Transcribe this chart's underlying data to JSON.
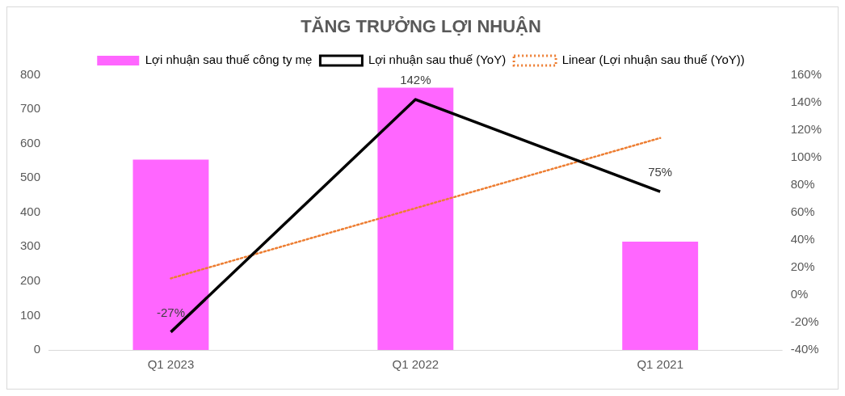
{
  "chart_data": {
    "type": "bar",
    "title": "TĂNG TRƯỞNG LỢI NHUẬN",
    "categories": [
      "Q1 2023",
      "Q1 2022",
      "Q1 2021"
    ],
    "series": [
      {
        "name": "Lợi nhuận sau thuế công ty mẹ",
        "color": "#ff66ff",
        "values": [
          553,
          762,
          315
        ]
      },
      {
        "name": "Lợi nhuận sau thuế (YoY)",
        "type": "line",
        "axis": "y2",
        "color": "#000000",
        "line_style": "solid",
        "values": [
          -27,
          142,
          75
        ],
        "value_labels": [
          "-27%",
          "142%",
          "75%"
        ]
      },
      {
        "name": "Linear (Lợi nhuận sau thuế (YoY))",
        "type": "line",
        "axis": "y2",
        "color": "#ed7d31",
        "line_style": "dotted",
        "values": [
          12,
          63,
          114
        ]
      }
    ],
    "ylim": [
      0,
      800
    ],
    "yticks": [
      0,
      100,
      200,
      300,
      400,
      500,
      600,
      700,
      800
    ],
    "y2lim": [
      -40,
      160
    ],
    "y2ticks": [
      {
        "value": -40,
        "label": "-40%"
      },
      {
        "value": -20,
        "label": "-20%"
      },
      {
        "value": 0,
        "label": "0%"
      },
      {
        "value": 20,
        "label": "20%"
      },
      {
        "value": 40,
        "label": "40%"
      },
      {
        "value": 60,
        "label": "60%"
      },
      {
        "value": 80,
        "label": "80%"
      },
      {
        "value": 100,
        "label": "100%"
      },
      {
        "value": 120,
        "label": "120%"
      },
      {
        "value": 140,
        "label": "140%"
      },
      {
        "value": 160,
        "label": "160%"
      }
    ],
    "grid": false,
    "legend": "top",
    "marker": "none"
  }
}
